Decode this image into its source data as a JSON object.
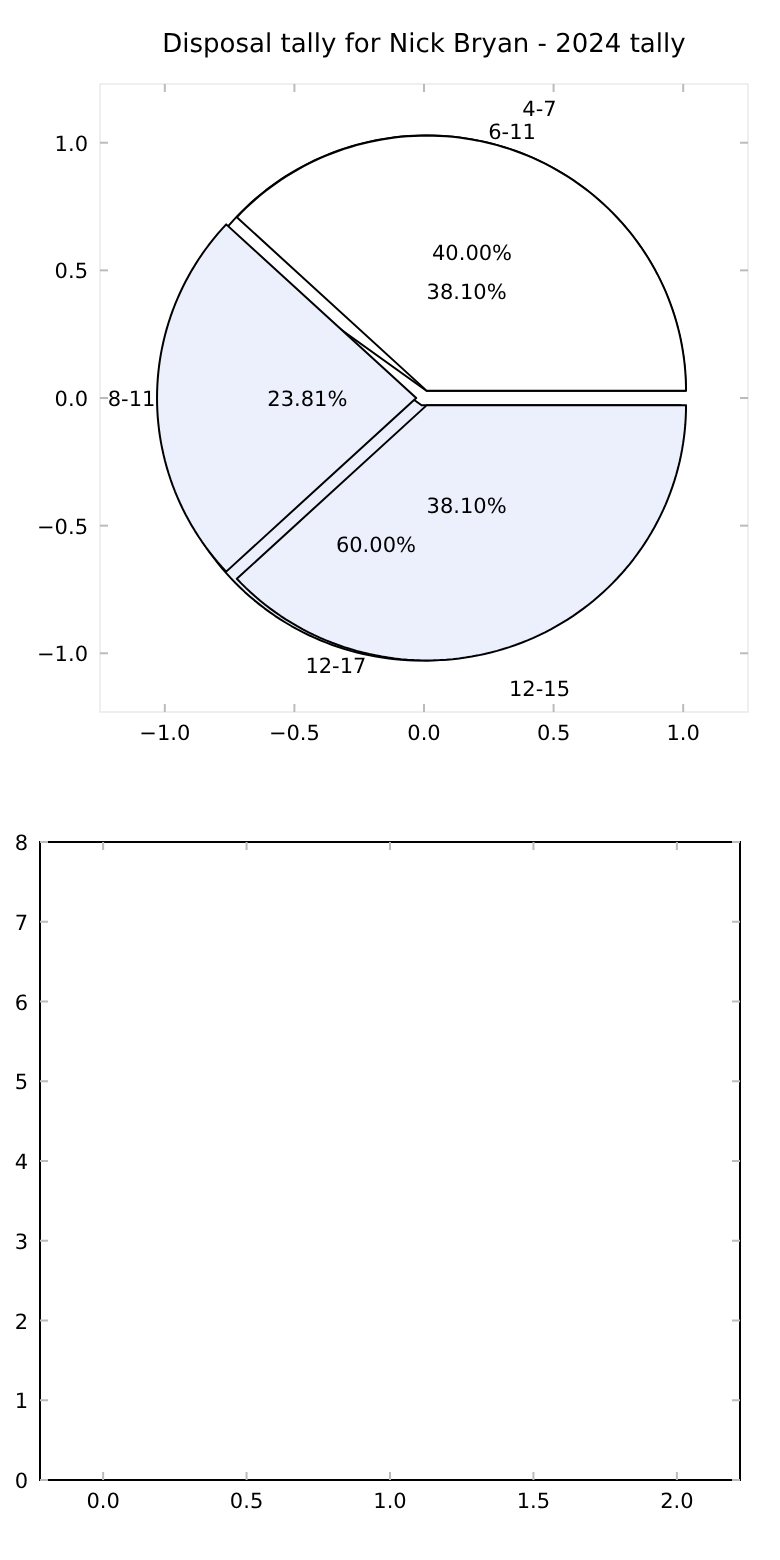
{
  "chart_data": [
    {
      "type": "scatter",
      "title": "Disposal tally for Nick Bryan - 2024 tally",
      "xlim": [
        -1.25,
        1.25
      ],
      "ylim": [
        -1.23,
        1.23
      ],
      "xticks": [
        {
          "value": -1,
          "label": "−1.0"
        },
        {
          "value": -0.5,
          "label": "−0.5"
        },
        {
          "value": 0,
          "label": "0.0"
        },
        {
          "value": 0.5,
          "label": "0.5"
        },
        {
          "value": 1,
          "label": "1.0"
        }
      ],
      "yticks": [
        {
          "value": -1,
          "label": "−1.0"
        },
        {
          "value": -0.5,
          "label": "−0.5"
        },
        {
          "value": 0,
          "label": "0.0"
        },
        {
          "value": 0.5,
          "label": "0.5"
        },
        {
          "value": 1,
          "label": "1.0"
        }
      ]
    },
    {
      "type": "pie",
      "categories": [
        "6-11",
        "12-17"
      ],
      "values": [
        40,
        60
      ],
      "colors": [
        "#ffffff",
        "#ebf0fc"
      ],
      "value_labels": [
        "40.00%",
        "60.00%"
      ]
    },
    {
      "type": "pie",
      "categories": [
        "4-7",
        "8-11",
        "12-15"
      ],
      "values": [
        38.1,
        23.81,
        38.1
      ],
      "colors": [
        "#ffffff",
        "#ebf0fc",
        "#ebf0fc"
      ],
      "value_labels": [
        "38.10%",
        "23.81%",
        "38.10%"
      ]
    },
    {
      "type": "scatter",
      "xlim": [
        -0.22,
        2.22
      ],
      "xticks": [
        {
          "value": 0,
          "label": "0.0"
        },
        {
          "value": 0.5,
          "label": "0.5"
        },
        {
          "value": 1,
          "label": "1.0"
        },
        {
          "value": 1.5,
          "label": "1.5"
        },
        {
          "value": 2,
          "label": "2.0"
        }
      ],
      "ylim": [
        0,
        8
      ],
      "yticks": [
        0,
        1,
        2,
        3,
        4,
        5,
        6,
        7,
        8
      ]
    }
  ]
}
